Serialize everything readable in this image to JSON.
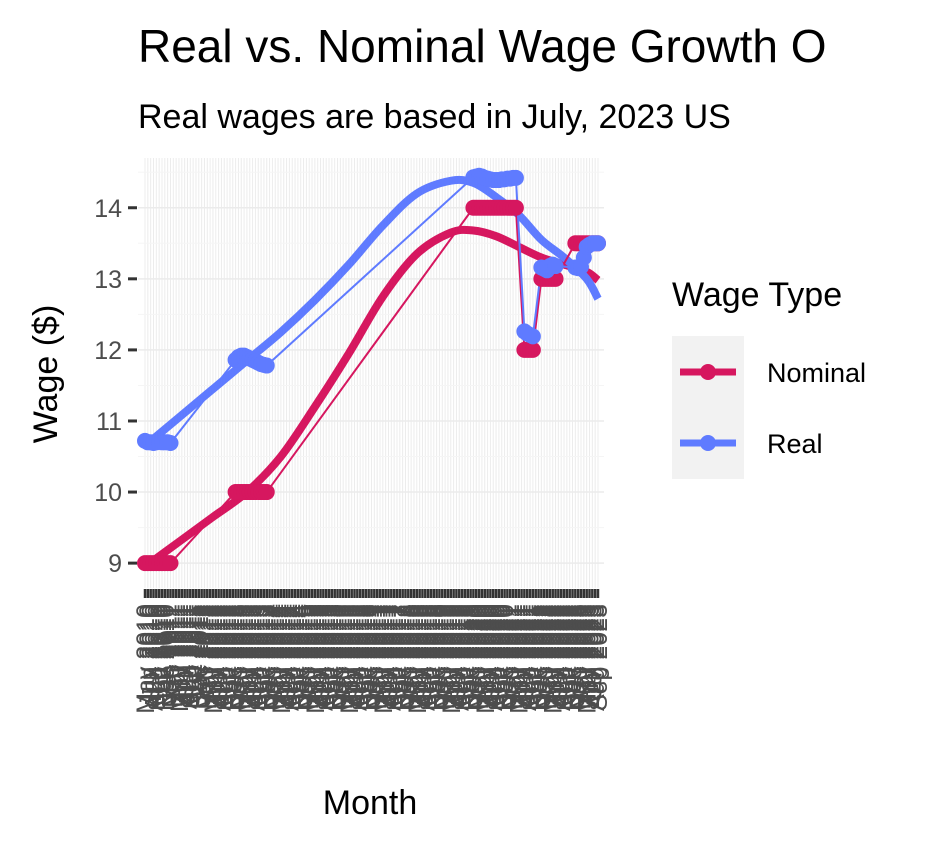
{
  "chart_data": {
    "type": "line",
    "title": "Real vs. Nominal Wage Growth O",
    "subtitle": "Real wages are based in July, 2023 US",
    "xlabel": "Month",
    "ylabel": "Wage ($)",
    "ylim": [
      8.65,
      14.7
    ],
    "yticks": [
      9,
      10,
      11,
      12,
      13,
      14
    ],
    "grid": true,
    "legend": {
      "title": "Wage Type",
      "position": "right",
      "items": [
        {
          "name": "Nominal",
          "color": "#d6175f"
        },
        {
          "name": "Real",
          "color": "#5f7bff"
        }
      ]
    },
    "x_tick_labels": [
      "May 2010",
      "Jun 2010",
      "Jul 2010",
      "Aug 2010",
      "Sep 2010",
      "Oct 2010",
      "Nov 2010",
      "Dec 2010",
      "Jan 2011",
      "Feb 2011",
      "Mar 2011",
      "Apr 2011",
      "May 2011",
      "Jun 2011",
      "Jul 2011",
      "Aug 2011",
      "Sep 2011",
      "Oct 2011",
      "Nov 2011",
      "Dec 2011",
      "Jan 2012",
      "Feb 2012",
      "Mar 2012",
      "Apr 2012",
      "May 2012",
      "Jun 2012",
      "Jul 2012",
      "Aug 2012",
      "Sep 2012",
      "Oct 2012",
      "Nov 2012",
      "Dec 2012",
      "Jan 2013",
      "Feb 2013",
      "Mar 2013",
      "Apr 2013",
      "May 2013",
      "Jun 2013",
      "Jul 2013",
      "Aug 2013",
      "Sep 2013",
      "Oct 2013",
      "Nov 2013",
      "Dec 2013",
      "Jan 2014",
      "Feb 2014",
      "Mar 2014",
      "Apr 2014",
      "May 2014",
      "Jun 2014",
      "Jul 2014",
      "Aug 2014",
      "Sep 2014",
      "Oct 2014",
      "Nov 2014",
      "Dec 2014",
      "Jan 2015",
      "Feb 2015",
      "Mar 2015",
      "Apr 2015",
      "May 2015",
      "Jun 2015",
      "Jul 2015",
      "Aug 2015",
      "Sep 2015",
      "Oct 2015",
      "Nov 2015",
      "Dec 2015",
      "Jan 2016",
      "Feb 2016",
      "Mar 2016",
      "Apr 2016",
      "May 2016",
      "Jun 2016",
      "Jul 2016",
      "Aug 2016",
      "Sep 2016",
      "Oct 2016",
      "Nov 2016",
      "Dec 2016",
      "Jan 2017",
      "Feb 2017",
      "Mar 2017",
      "Apr 2017",
      "May 2017",
      "Jun 2017",
      "Jul 2017",
      "Aug 2017",
      "Sep 2017",
      "Oct 2017",
      "Nov 2017",
      "Dec 2017",
      "Jan 2018",
      "Feb 2018",
      "Mar 2018",
      "Apr 2018",
      "May 2018",
      "Jun 2018",
      "Jul 2018",
      "Aug 2018",
      "Sep 2018",
      "Oct 2018",
      "Nov 2018",
      "Dec 2018",
      "Jan 2019",
      "Feb 2019",
      "Mar 2019",
      "Apr 2019",
      "May 2019",
      "Jun 2019",
      "Jul 2019",
      "Aug 2019",
      "Sep 2019",
      "Oct 2019",
      "Nov 2019",
      "Dec 2019",
      "Jan 2020",
      "Feb 2020",
      "Mar 2020",
      "Apr 2020",
      "May 2020",
      "Jun 2020",
      "Jul 2020",
      "Aug 2020",
      "Sep 2020",
      "Oct 2020",
      "Nov 2020",
      "Dec 2020",
      "Jan 2021",
      "Feb 2021",
      "Mar 2021",
      "Apr 2021",
      "May 2021",
      "Jun 2021",
      "Jul 2021",
      "Aug 2021",
      "Sep 2021",
      "Oct 2021",
      "Nov 2021",
      "Dec 2021",
      "Jan 2022",
      "Feb 2022",
      "Mar 2022",
      "Apr 2022",
      "May 2022",
      "Jun 2022",
      "Jul 2022",
      "Aug 2022",
      "Sep 2022",
      "Oct 2022",
      "Nov 2022",
      "Dec 2022",
      "Jan 2023",
      "Feb 2023",
      "Mar 2023",
      "Apr 2023",
      "May 2023",
      "Jun 2023",
      "Jul 2023",
      "Aug 2023",
      "Sep 2023"
    ],
    "series": [
      {
        "name": "Nominal",
        "color": "#d6175f",
        "points": [
          {
            "x": "May 2010",
            "y": 9.0
          },
          {
            "x": "Jun 2010",
            "y": 9.0
          },
          {
            "x": "Jul 2010",
            "y": 9.0
          },
          {
            "x": "Aug 2010",
            "y": 9.0
          },
          {
            "x": "Sep 2010",
            "y": 9.0
          },
          {
            "x": "Oct 2010",
            "y": 9.0
          },
          {
            "x": "Nov 2010",
            "y": 9.0
          },
          {
            "x": "Dec 2010",
            "y": 9.0
          },
          {
            "x": "Jan 2011",
            "y": 9.0
          },
          {
            "x": "Feb 2011",
            "y": 9.0
          },
          {
            "x": "Jan 2013",
            "y": 10.0
          },
          {
            "x": "Feb 2013",
            "y": 10.0
          },
          {
            "x": "Mar 2013",
            "y": 10.0
          },
          {
            "x": "Apr 2013",
            "y": 10.0
          },
          {
            "x": "May 2013",
            "y": 10.0
          },
          {
            "x": "Jun 2013",
            "y": 10.0
          },
          {
            "x": "Jul 2013",
            "y": 10.0
          },
          {
            "x": "Aug 2013",
            "y": 10.0
          },
          {
            "x": "Sep 2013",
            "y": 10.0
          },
          {
            "x": "Oct 2013",
            "y": 10.0
          },
          {
            "x": "Nov 2013",
            "y": 10.0
          },
          {
            "x": "Dec 2013",
            "y": 10.0
          },
          {
            "x": "Jan 2020",
            "y": 14.0
          },
          {
            "x": "Feb 2020",
            "y": 14.0
          },
          {
            "x": "Mar 2020",
            "y": 14.0
          },
          {
            "x": "Apr 2020",
            "y": 14.0
          },
          {
            "x": "May 2020",
            "y": 14.0
          },
          {
            "x": "Jun 2020",
            "y": 14.0
          },
          {
            "x": "Jul 2020",
            "y": 14.0
          },
          {
            "x": "Aug 2020",
            "y": 14.0
          },
          {
            "x": "Sep 2020",
            "y": 14.0
          },
          {
            "x": "Oct 2020",
            "y": 14.0
          },
          {
            "x": "Nov 2020",
            "y": 14.0
          },
          {
            "x": "Dec 2020",
            "y": 14.0
          },
          {
            "x": "Jan 2021",
            "y": 14.0
          },
          {
            "x": "Feb 2021",
            "y": 14.0
          },
          {
            "x": "Mar 2021",
            "y": 14.0
          },
          {
            "x": "Apr 2021",
            "y": 14.0
          },
          {
            "x": "Jul 2021",
            "y": 12.0
          },
          {
            "x": "Aug 2021",
            "y": 12.0
          },
          {
            "x": "Sep 2021",
            "y": 12.0
          },
          {
            "x": "Oct 2021",
            "y": 12.0
          },
          {
            "x": "Jan 2022",
            "y": 13.0
          },
          {
            "x": "Feb 2022",
            "y": 13.0
          },
          {
            "x": "Mar 2022",
            "y": 13.0
          },
          {
            "x": "Apr 2022",
            "y": 13.0
          },
          {
            "x": "May 2022",
            "y": 13.0
          },
          {
            "x": "Jun 2022",
            "y": 13.0
          },
          {
            "x": "Jan 2023",
            "y": 13.5
          },
          {
            "x": "Feb 2023",
            "y": 13.5
          },
          {
            "x": "Mar 2023",
            "y": 13.5
          },
          {
            "x": "Apr 2023",
            "y": 13.5
          },
          {
            "x": "May 2023",
            "y": 13.5
          },
          {
            "x": "Jun 2023",
            "y": 13.5
          },
          {
            "x": "Jul 2023",
            "y": 13.5
          },
          {
            "x": "Aug 2023",
            "y": 13.5
          },
          {
            "x": "Sep 2023",
            "y": 13.5
          }
        ],
        "smooth": [
          {
            "x": "May 2010",
            "y": 8.95
          },
          {
            "x": "May 2011",
            "y": 9.3
          },
          {
            "x": "May 2012",
            "y": 9.65
          },
          {
            "x": "May 2013",
            "y": 10.0
          },
          {
            "x": "May 2014",
            "y": 10.5
          },
          {
            "x": "May 2015",
            "y": 11.2
          },
          {
            "x": "May 2016",
            "y": 11.95
          },
          {
            "x": "May 2017",
            "y": 12.75
          },
          {
            "x": "May 2018",
            "y": 13.35
          },
          {
            "x": "May 2019",
            "y": 13.65
          },
          {
            "x": "Jan 2020",
            "y": 13.68
          },
          {
            "x": "Sep 2020",
            "y": 13.6
          },
          {
            "x": "May 2021",
            "y": 13.45
          },
          {
            "x": "Jan 2022",
            "y": 13.3
          },
          {
            "x": "Sep 2022",
            "y": 13.2
          },
          {
            "x": "May 2023",
            "y": 13.1
          },
          {
            "x": "Sep 2023",
            "y": 12.98
          }
        ]
      },
      {
        "name": "Real",
        "color": "#5f7bff",
        "points": [
          {
            "x": "May 2010",
            "y": 10.72
          },
          {
            "x": "Jun 2010",
            "y": 10.7
          },
          {
            "x": "Jul 2010",
            "y": 10.7
          },
          {
            "x": "Aug 2010",
            "y": 10.69
          },
          {
            "x": "Sep 2010",
            "y": 10.7
          },
          {
            "x": "Oct 2010",
            "y": 10.71
          },
          {
            "x": "Nov 2010",
            "y": 10.7
          },
          {
            "x": "Dec 2010",
            "y": 10.7
          },
          {
            "x": "Jan 2011",
            "y": 10.7
          },
          {
            "x": "Feb 2011",
            "y": 10.69
          },
          {
            "x": "Jan 2013",
            "y": 11.86
          },
          {
            "x": "Feb 2013",
            "y": 11.9
          },
          {
            "x": "Mar 2013",
            "y": 11.92
          },
          {
            "x": "Apr 2013",
            "y": 11.92
          },
          {
            "x": "May 2013",
            "y": 11.9
          },
          {
            "x": "Jun 2013",
            "y": 11.88
          },
          {
            "x": "Jul 2013",
            "y": 11.86
          },
          {
            "x": "Aug 2013",
            "y": 11.84
          },
          {
            "x": "Sep 2013",
            "y": 11.82
          },
          {
            "x": "Oct 2013",
            "y": 11.8
          },
          {
            "x": "Nov 2013",
            "y": 11.79
          },
          {
            "x": "Dec 2013",
            "y": 11.78
          },
          {
            "x": "Jan 2020",
            "y": 14.43
          },
          {
            "x": "Feb 2020",
            "y": 14.44
          },
          {
            "x": "Mar 2020",
            "y": 14.45
          },
          {
            "x": "Apr 2020",
            "y": 14.44
          },
          {
            "x": "May 2020",
            "y": 14.42
          },
          {
            "x": "Jun 2020",
            "y": 14.41
          },
          {
            "x": "Jul 2020",
            "y": 14.4
          },
          {
            "x": "Aug 2020",
            "y": 14.39
          },
          {
            "x": "Sep 2020",
            "y": 14.39
          },
          {
            "x": "Oct 2020",
            "y": 14.39
          },
          {
            "x": "Nov 2020",
            "y": 14.4
          },
          {
            "x": "Dec 2020",
            "y": 14.4
          },
          {
            "x": "Jan 2021",
            "y": 14.41
          },
          {
            "x": "Feb 2021",
            "y": 14.41
          },
          {
            "x": "Mar 2021",
            "y": 14.42
          },
          {
            "x": "Apr 2021",
            "y": 14.42
          },
          {
            "x": "Jul 2021",
            "y": 12.26
          },
          {
            "x": "Aug 2021",
            "y": 12.23
          },
          {
            "x": "Sep 2021",
            "y": 12.21
          },
          {
            "x": "Oct 2021",
            "y": 12.19
          },
          {
            "x": "Jan 2022",
            "y": 13.16
          },
          {
            "x": "Feb 2022",
            "y": 13.14
          },
          {
            "x": "Mar 2022",
            "y": 13.12
          },
          {
            "x": "Apr 2022",
            "y": 13.18
          },
          {
            "x": "May 2022",
            "y": 13.2
          },
          {
            "x": "Jun 2022",
            "y": 13.18
          },
          {
            "x": "Jan 2023",
            "y": 13.16
          },
          {
            "x": "Feb 2023",
            "y": 13.15
          },
          {
            "x": "Mar 2023",
            "y": 13.17
          },
          {
            "x": "Apr 2023",
            "y": 13.3
          },
          {
            "x": "May 2023",
            "y": 13.45
          },
          {
            "x": "Jun 2023",
            "y": 13.48
          },
          {
            "x": "Jul 2023",
            "y": 13.5
          },
          {
            "x": "Aug 2023",
            "y": 13.5
          },
          {
            "x": "Sep 2023",
            "y": 13.5
          }
        ],
        "smooth": [
          {
            "x": "May 2010",
            "y": 10.65
          },
          {
            "x": "May 2011",
            "y": 11.05
          },
          {
            "x": "May 2012",
            "y": 11.45
          },
          {
            "x": "May 2013",
            "y": 11.85
          },
          {
            "x": "May 2014",
            "y": 12.25
          },
          {
            "x": "May 2015",
            "y": 12.7
          },
          {
            "x": "May 2016",
            "y": 13.2
          },
          {
            "x": "May 2017",
            "y": 13.75
          },
          {
            "x": "May 2018",
            "y": 14.2
          },
          {
            "x": "May 2019",
            "y": 14.38
          },
          {
            "x": "Jan 2020",
            "y": 14.35
          },
          {
            "x": "Sep 2020",
            "y": 14.15
          },
          {
            "x": "May 2021",
            "y": 13.9
          },
          {
            "x": "Jan 2022",
            "y": 13.55
          },
          {
            "x": "Sep 2022",
            "y": 13.3
          },
          {
            "x": "May 2023",
            "y": 13.0
          },
          {
            "x": "Sep 2023",
            "y": 12.72
          }
        ]
      }
    ]
  }
}
